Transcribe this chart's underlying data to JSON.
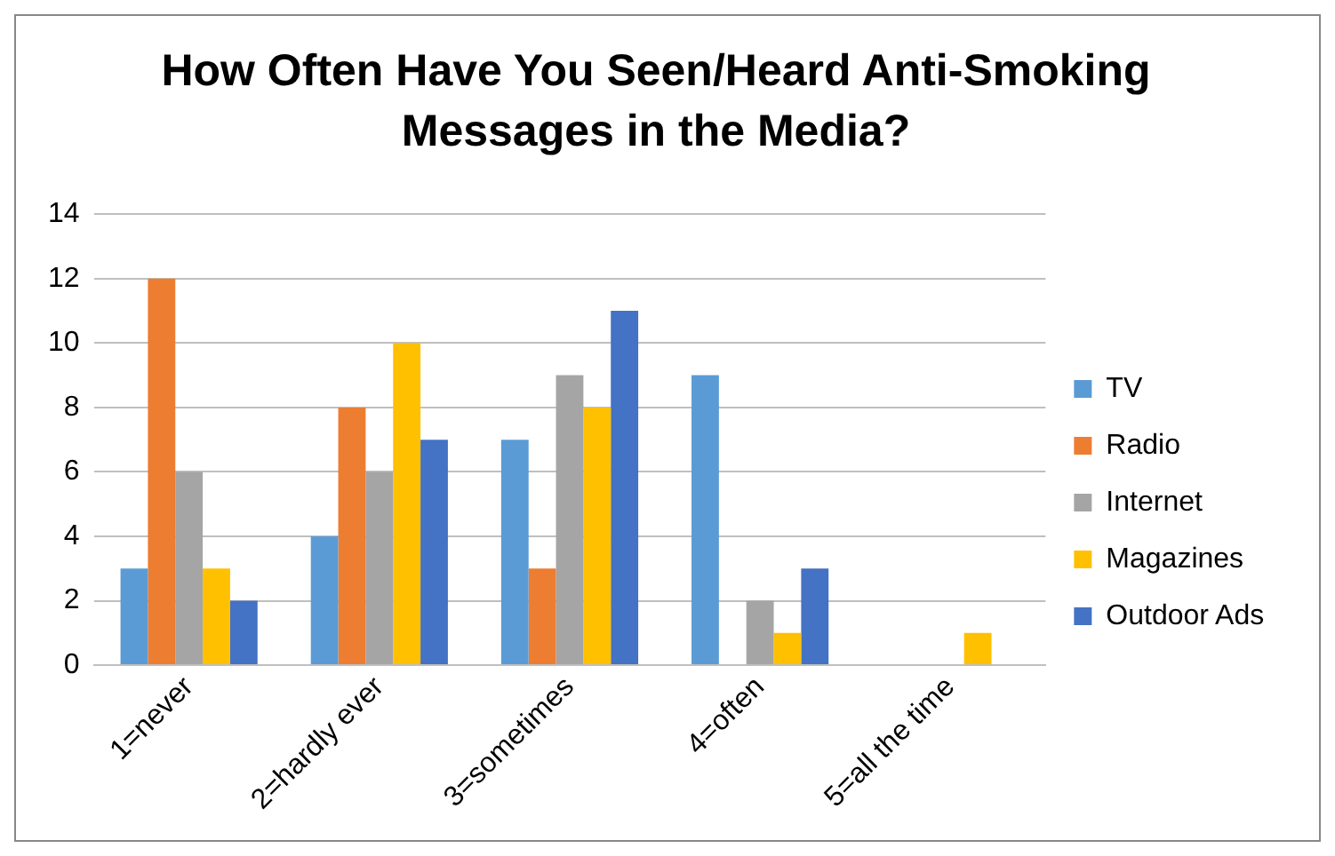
{
  "chart_data": {
    "type": "bar",
    "title": "How Often Have You Seen/Heard Anti-Smoking Messages in the Media?",
    "categories": [
      "1=never",
      "2=hardly ever",
      "3=sometimes",
      "4=often",
      "5=all the time"
    ],
    "series": [
      {
        "name": "TV",
        "color": "#5b9bd5",
        "values": [
          3,
          4,
          7,
          9,
          0
        ]
      },
      {
        "name": "Radio",
        "color": "#ed7d31",
        "values": [
          12,
          8,
          3,
          0,
          0
        ]
      },
      {
        "name": "Internet",
        "color": "#a5a5a5",
        "values": [
          6,
          6,
          9,
          2,
          0
        ]
      },
      {
        "name": "Magazines",
        "color": "#ffc000",
        "values": [
          3,
          10,
          8,
          1,
          1
        ]
      },
      {
        "name": "Outdoor Ads",
        "color": "#4472c4",
        "values": [
          2,
          7,
          11,
          3,
          0
        ]
      }
    ],
    "ylim": [
      0,
      14
    ],
    "yticks": [
      0,
      2,
      4,
      6,
      8,
      10,
      12,
      14
    ],
    "grid": "y",
    "legend": "right"
  }
}
